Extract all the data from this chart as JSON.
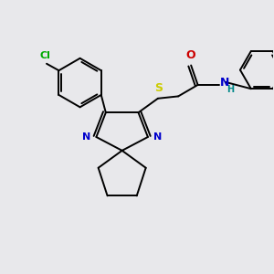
{
  "bg_color": "#e8e8eb",
  "atom_colors": {
    "C": "#000000",
    "N": "#0000cc",
    "O": "#cc0000",
    "S": "#cccc00",
    "Cl": "#00aa00",
    "H": "#008888"
  },
  "lw": 1.4
}
